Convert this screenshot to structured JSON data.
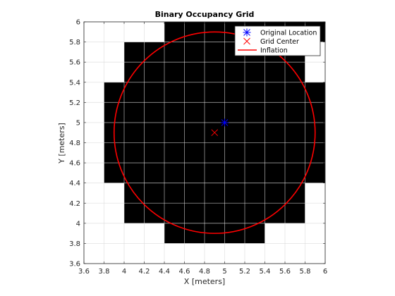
{
  "chart_data": {
    "type": "scatter",
    "title": "Binary Occupancy Grid",
    "xlabel": "X [meters]",
    "ylabel": "Y [meters]",
    "xlim": [
      3.6,
      6
    ],
    "ylim": [
      3.6,
      6
    ],
    "grid": true,
    "x_ticks": [
      "3.6",
      "3.8",
      "4",
      "4.2",
      "4.4",
      "4.6",
      "4.8",
      "5",
      "5.2",
      "5.4",
      "5.6",
      "5.8",
      "6"
    ],
    "y_ticks": [
      "3.6",
      "3.8",
      "4",
      "4.2",
      "4.4",
      "4.6",
      "4.8",
      "5",
      "5.2",
      "5.4",
      "5.6",
      "5.8",
      "6"
    ],
    "occupied_cells": [
      {
        "x0": 4.4,
        "x1": 5.4,
        "y0": 3.8,
        "y1": 4.0
      },
      {
        "x0": 4.0,
        "x1": 5.8,
        "y0": 4.0,
        "y1": 4.4
      },
      {
        "x0": 3.8,
        "x1": 6.0,
        "y0": 4.4,
        "y1": 5.4
      },
      {
        "x0": 4.0,
        "x1": 5.8,
        "y0": 5.4,
        "y1": 5.8
      },
      {
        "x0": 4.4,
        "x1": 6.0,
        "y0": 5.8,
        "y1": 6.0
      }
    ],
    "inflation_circle": {
      "cx": 4.9,
      "cy": 4.9,
      "r": 1.0
    },
    "series": [
      {
        "name": "Original Location",
        "marker": "*",
        "color": "#0000ff",
        "x": [
          5.0
        ],
        "y": [
          5.0
        ]
      },
      {
        "name": "Grid Center",
        "marker": "x",
        "color": "#ff0000",
        "x": [
          4.9
        ],
        "y": [
          4.9
        ]
      },
      {
        "name": "Inflation",
        "marker": "line",
        "color": "#ff0000"
      }
    ],
    "legend_position": "top-right"
  }
}
